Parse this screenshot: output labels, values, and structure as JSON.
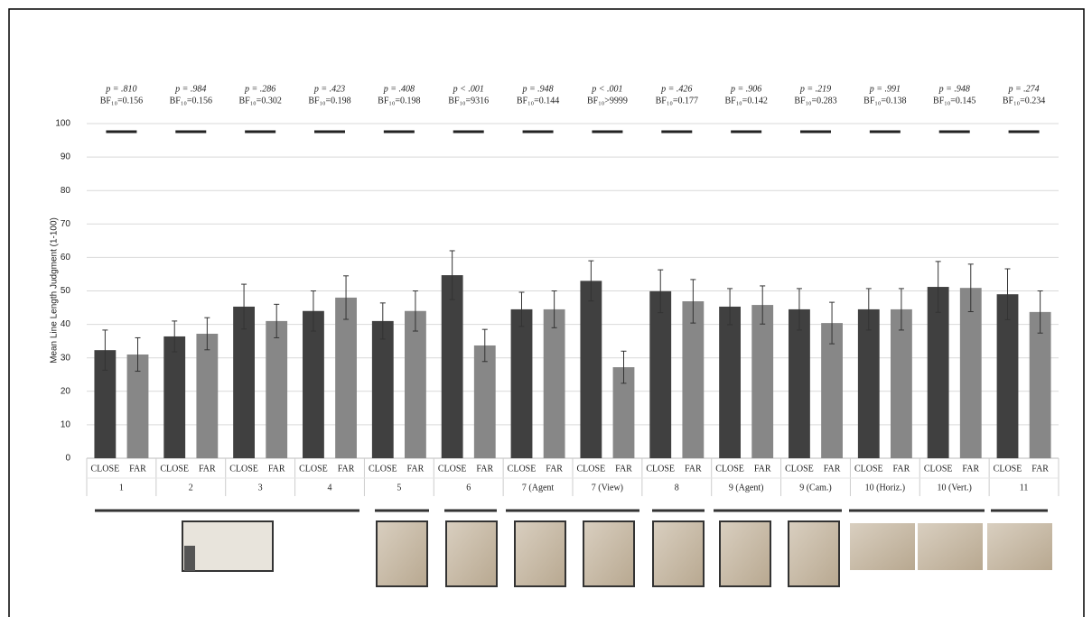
{
  "chart_data": {
    "type": "bar",
    "y_label": "Mean Line Length Judgment (1-100)",
    "categories": [
      "1",
      "2",
      "3",
      "4",
      "5",
      "6",
      "7 (Agent",
      "7 (View)",
      "8",
      "9 (Agent)",
      "9 (Cam.)",
      "10 (Horiz.)",
      "10 (Vert.)",
      "11"
    ],
    "series": [
      {
        "name": "CLOSE",
        "color": "#404040",
        "values": [
          32.3,
          36.4,
          45.3,
          44,
          41,
          54.7,
          44.5,
          53,
          49.9,
          45.3,
          44.5,
          44.5,
          51.2,
          49
        ],
        "errors": [
          6,
          4.6,
          6.7,
          6,
          5.4,
          7.3,
          5.1,
          6,
          6.4,
          5.4,
          6.2,
          6.2,
          7.6,
          7.6
        ]
      },
      {
        "name": "FAR",
        "color": "#878787",
        "values": [
          31,
          37.2,
          41,
          48,
          44,
          33.7,
          44.5,
          27.2,
          46.9,
          45.8,
          40.4,
          44.5,
          50.9,
          43.7
        ],
        "errors": [
          5,
          4.8,
          5,
          6.5,
          6,
          4.8,
          5.5,
          4.8,
          6.5,
          5.7,
          6.2,
          6.2,
          7.1,
          6.3
        ]
      }
    ],
    "annotations": [
      {
        "p": "p = .810",
        "bf": "BF₁₀=0.156"
      },
      {
        "p": "p = .984",
        "bf": "BF₁₀=0.156"
      },
      {
        "p": "p = .286",
        "bf": "BF₁₀=0.302"
      },
      {
        "p": "p = .423",
        "bf": "BF₁₀=0.198"
      },
      {
        "p": "p = .408",
        "bf": "BF₁₀=0.198"
      },
      {
        "p": "p < .001",
        "bf": "BF₁₀=9316"
      },
      {
        "p": "p = .948",
        "bf": "BF₁₀=0.144"
      },
      {
        "p": "p < .001",
        "bf": "BF₁₀>9999"
      },
      {
        "p": "p = .426",
        "bf": "BF₁₀=0.177"
      },
      {
        "p": "p = .906",
        "bf": "BF₁₀=0.142"
      },
      {
        "p": "p = .219",
        "bf": "BF₁₀=0.283"
      },
      {
        "p": "p = .991",
        "bf": "BF₁₀=0.138"
      },
      {
        "p": "p = .948",
        "bf": "BF₁₀=0.145"
      },
      {
        "p": "p = .274",
        "bf": "BF₁₀=0.234"
      }
    ],
    "ylim": [
      0,
      100
    ],
    "yticks": [
      0,
      10,
      20,
      30,
      40,
      50,
      60,
      70,
      80,
      90,
      100
    ],
    "grid": true
  }
}
